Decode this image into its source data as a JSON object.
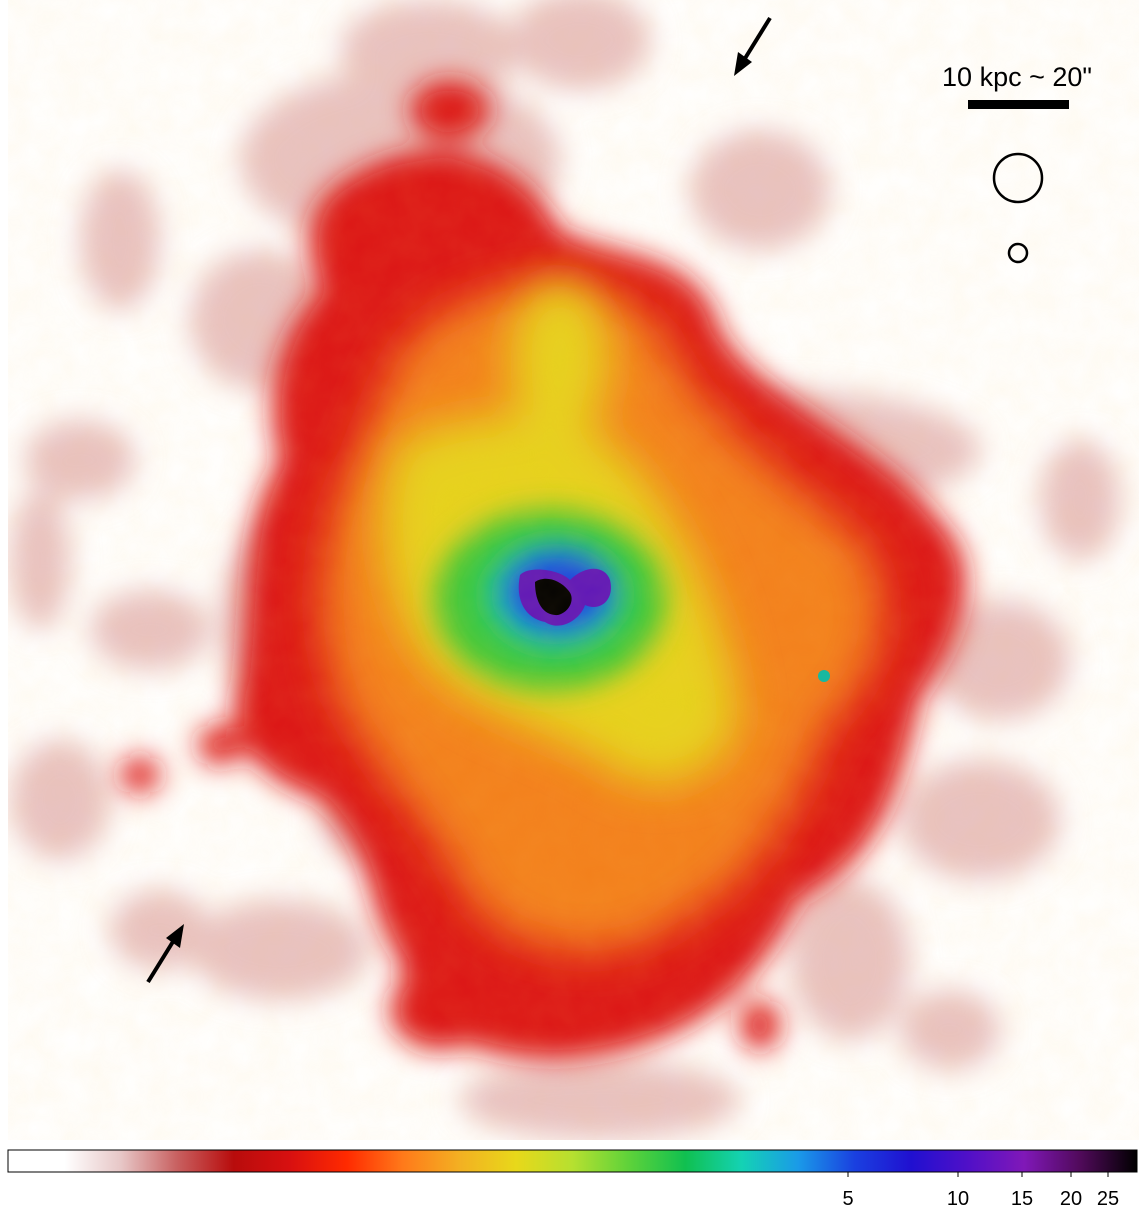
{
  "image": {
    "description_type": "x-ray surface brightness map",
    "colors": {
      "background": "#ffffff",
      "faint": "#e8c4c4",
      "low": "#d81010",
      "mid": "#f28a1a",
      "yellow": "#e8d81a",
      "green": "#3ec83a",
      "blue": "#1818d8",
      "peak": "#000000"
    }
  },
  "scale_bar": {
    "label": "10 kpc ~ 20\""
  },
  "colorbar": {
    "tick_labels": [
      "5",
      "10",
      "15",
      "20",
      "25"
    ],
    "tick_values": [
      5,
      10,
      15,
      20,
      25
    ],
    "stops": [
      "#ffffff",
      "#ffffff",
      "#e7c7c7",
      "#c86060",
      "#b80c0c",
      "#d81010",
      "#ff2a00",
      "#ff7a1a",
      "#f3b022",
      "#e8d81a",
      "#b6e030",
      "#5ed23a",
      "#10c050",
      "#14d2b4",
      "#1a9ae8",
      "#1a40e0",
      "#2010d0",
      "#5010c8",
      "#8018b8",
      "#500a5a",
      "#000000"
    ]
  }
}
